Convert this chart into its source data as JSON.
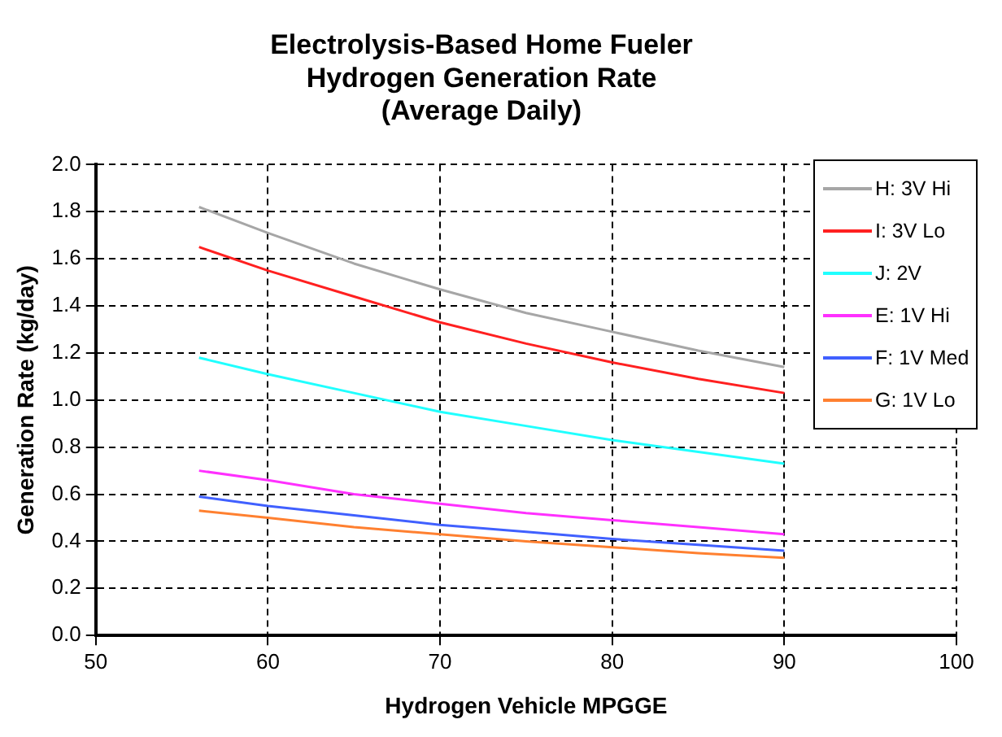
{
  "chart_data": {
    "type": "line",
    "title": "Electrolysis-Based Home Fueler\nHydrogen Generation Rate\n(Average Daily)",
    "xlabel": "Hydrogen Vehicle MPGGE",
    "ylabel": "Generation Rate (kg/day)",
    "x": [
      56,
      60,
      65,
      70,
      75,
      80,
      85,
      90
    ],
    "series": [
      {
        "name": "H: 3V Hi",
        "color": "#a6a6a6",
        "values": [
          1.82,
          1.71,
          1.58,
          1.47,
          1.37,
          1.29,
          1.21,
          1.14
        ]
      },
      {
        "name": "I: 3V Lo",
        "color": "#ff2020",
        "values": [
          1.65,
          1.55,
          1.44,
          1.33,
          1.24,
          1.16,
          1.09,
          1.03
        ]
      },
      {
        "name": "J: 2V",
        "color": "#20ffff",
        "values": [
          1.18,
          1.11,
          1.03,
          0.95,
          0.89,
          0.83,
          0.78,
          0.73
        ]
      },
      {
        "name": "E: 1V Hi",
        "color": "#ff30ff",
        "values": [
          0.7,
          0.66,
          0.6,
          0.56,
          0.52,
          0.49,
          0.46,
          0.43
        ]
      },
      {
        "name": "F: 1V Med",
        "color": "#4060ff",
        "values": [
          0.59,
          0.55,
          0.51,
          0.47,
          0.44,
          0.41,
          0.385,
          0.36
        ]
      },
      {
        "name": "G: 1V Lo",
        "color": "#ff8030",
        "values": [
          0.53,
          0.5,
          0.46,
          0.43,
          0.4,
          0.375,
          0.35,
          0.33
        ]
      }
    ],
    "xlim": [
      50,
      100
    ],
    "xticks": [
      50,
      60,
      70,
      80,
      90,
      100
    ],
    "ylim": [
      0,
      2
    ],
    "yticks": [
      {
        "value": 0,
        "label": "0.0"
      },
      0.2,
      0.4,
      0.6,
      0.8,
      {
        "value": 1,
        "label": "1.0"
      },
      1.2,
      1.4,
      1.6,
      1.8,
      {
        "value": 2,
        "label": "2.0"
      }
    ],
    "grid": true,
    "legend": "top right",
    "marker": "none",
    "line_style": "solid"
  }
}
